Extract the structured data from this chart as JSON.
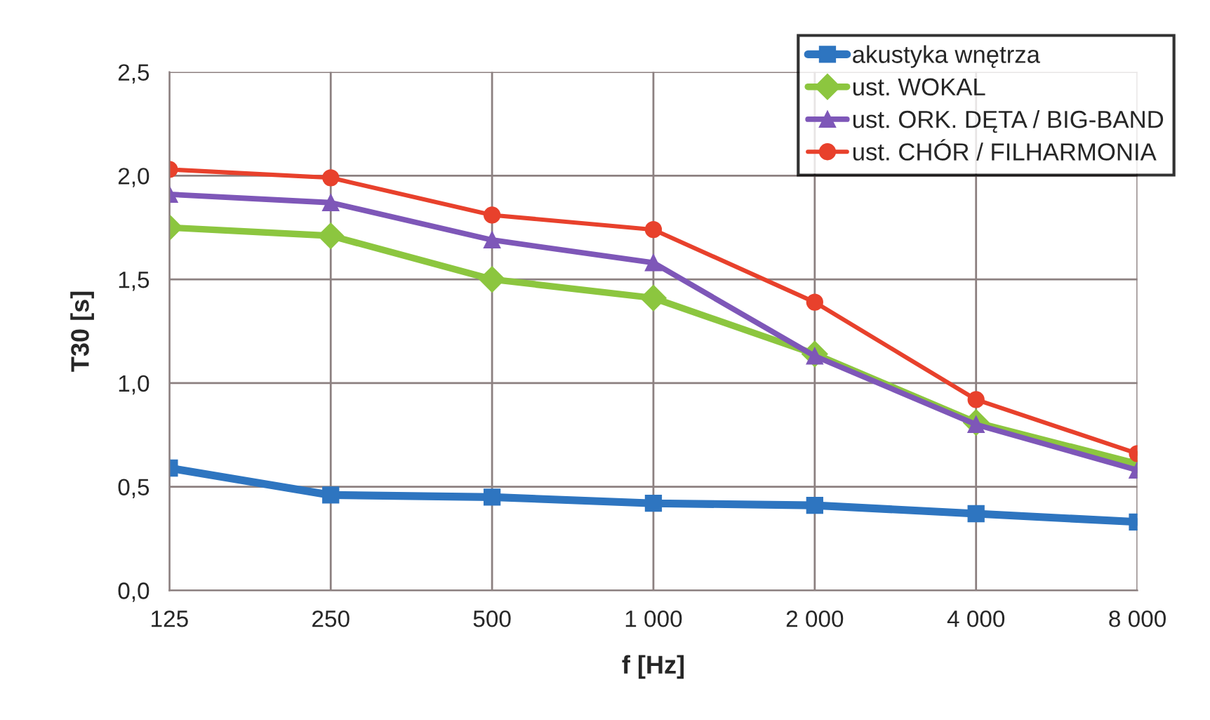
{
  "chart_data": {
    "type": "line",
    "xlabel": "f [Hz]",
    "ylabel": "T30 [s]",
    "categories": [
      "125",
      "250",
      "500",
      "1 000",
      "2 000",
      "4 000",
      "8 000"
    ],
    "series": [
      {
        "name": "akustyka wnętrza",
        "color": "#2e75c0",
        "marker": "square",
        "values": [
          0.59,
          0.46,
          0.45,
          0.42,
          0.41,
          0.37,
          0.33
        ]
      },
      {
        "name": "ust. WOKAL",
        "color": "#8cc63f",
        "marker": "diamond",
        "values": [
          1.75,
          1.71,
          1.5,
          1.41,
          1.14,
          0.81,
          0.61
        ]
      },
      {
        "name": "ust. ORK. DĘTA / BIG-BAND",
        "color": "#7e57b8",
        "marker": "triangle",
        "values": [
          1.91,
          1.87,
          1.69,
          1.58,
          1.13,
          0.8,
          0.58
        ]
      },
      {
        "name": "ust. CHÓR / FILHARMONIA",
        "color": "#e8412c",
        "marker": "circle",
        "values": [
          2.03,
          1.99,
          1.81,
          1.74,
          1.39,
          0.92,
          0.66
        ]
      }
    ],
    "ylim": [
      0,
      2.5
    ],
    "yticks": [
      {
        "value": 0,
        "label": "0,0"
      },
      {
        "value": 0.5,
        "label": "0,5"
      },
      {
        "value": 1,
        "label": "1,0"
      },
      {
        "value": 1.5,
        "label": "1,5"
      },
      {
        "value": 2,
        "label": "2,0"
      },
      {
        "value": 2.5,
        "label": "2,5"
      }
    ],
    "grid": true,
    "legend": "top right",
    "line_style": "solid"
  }
}
